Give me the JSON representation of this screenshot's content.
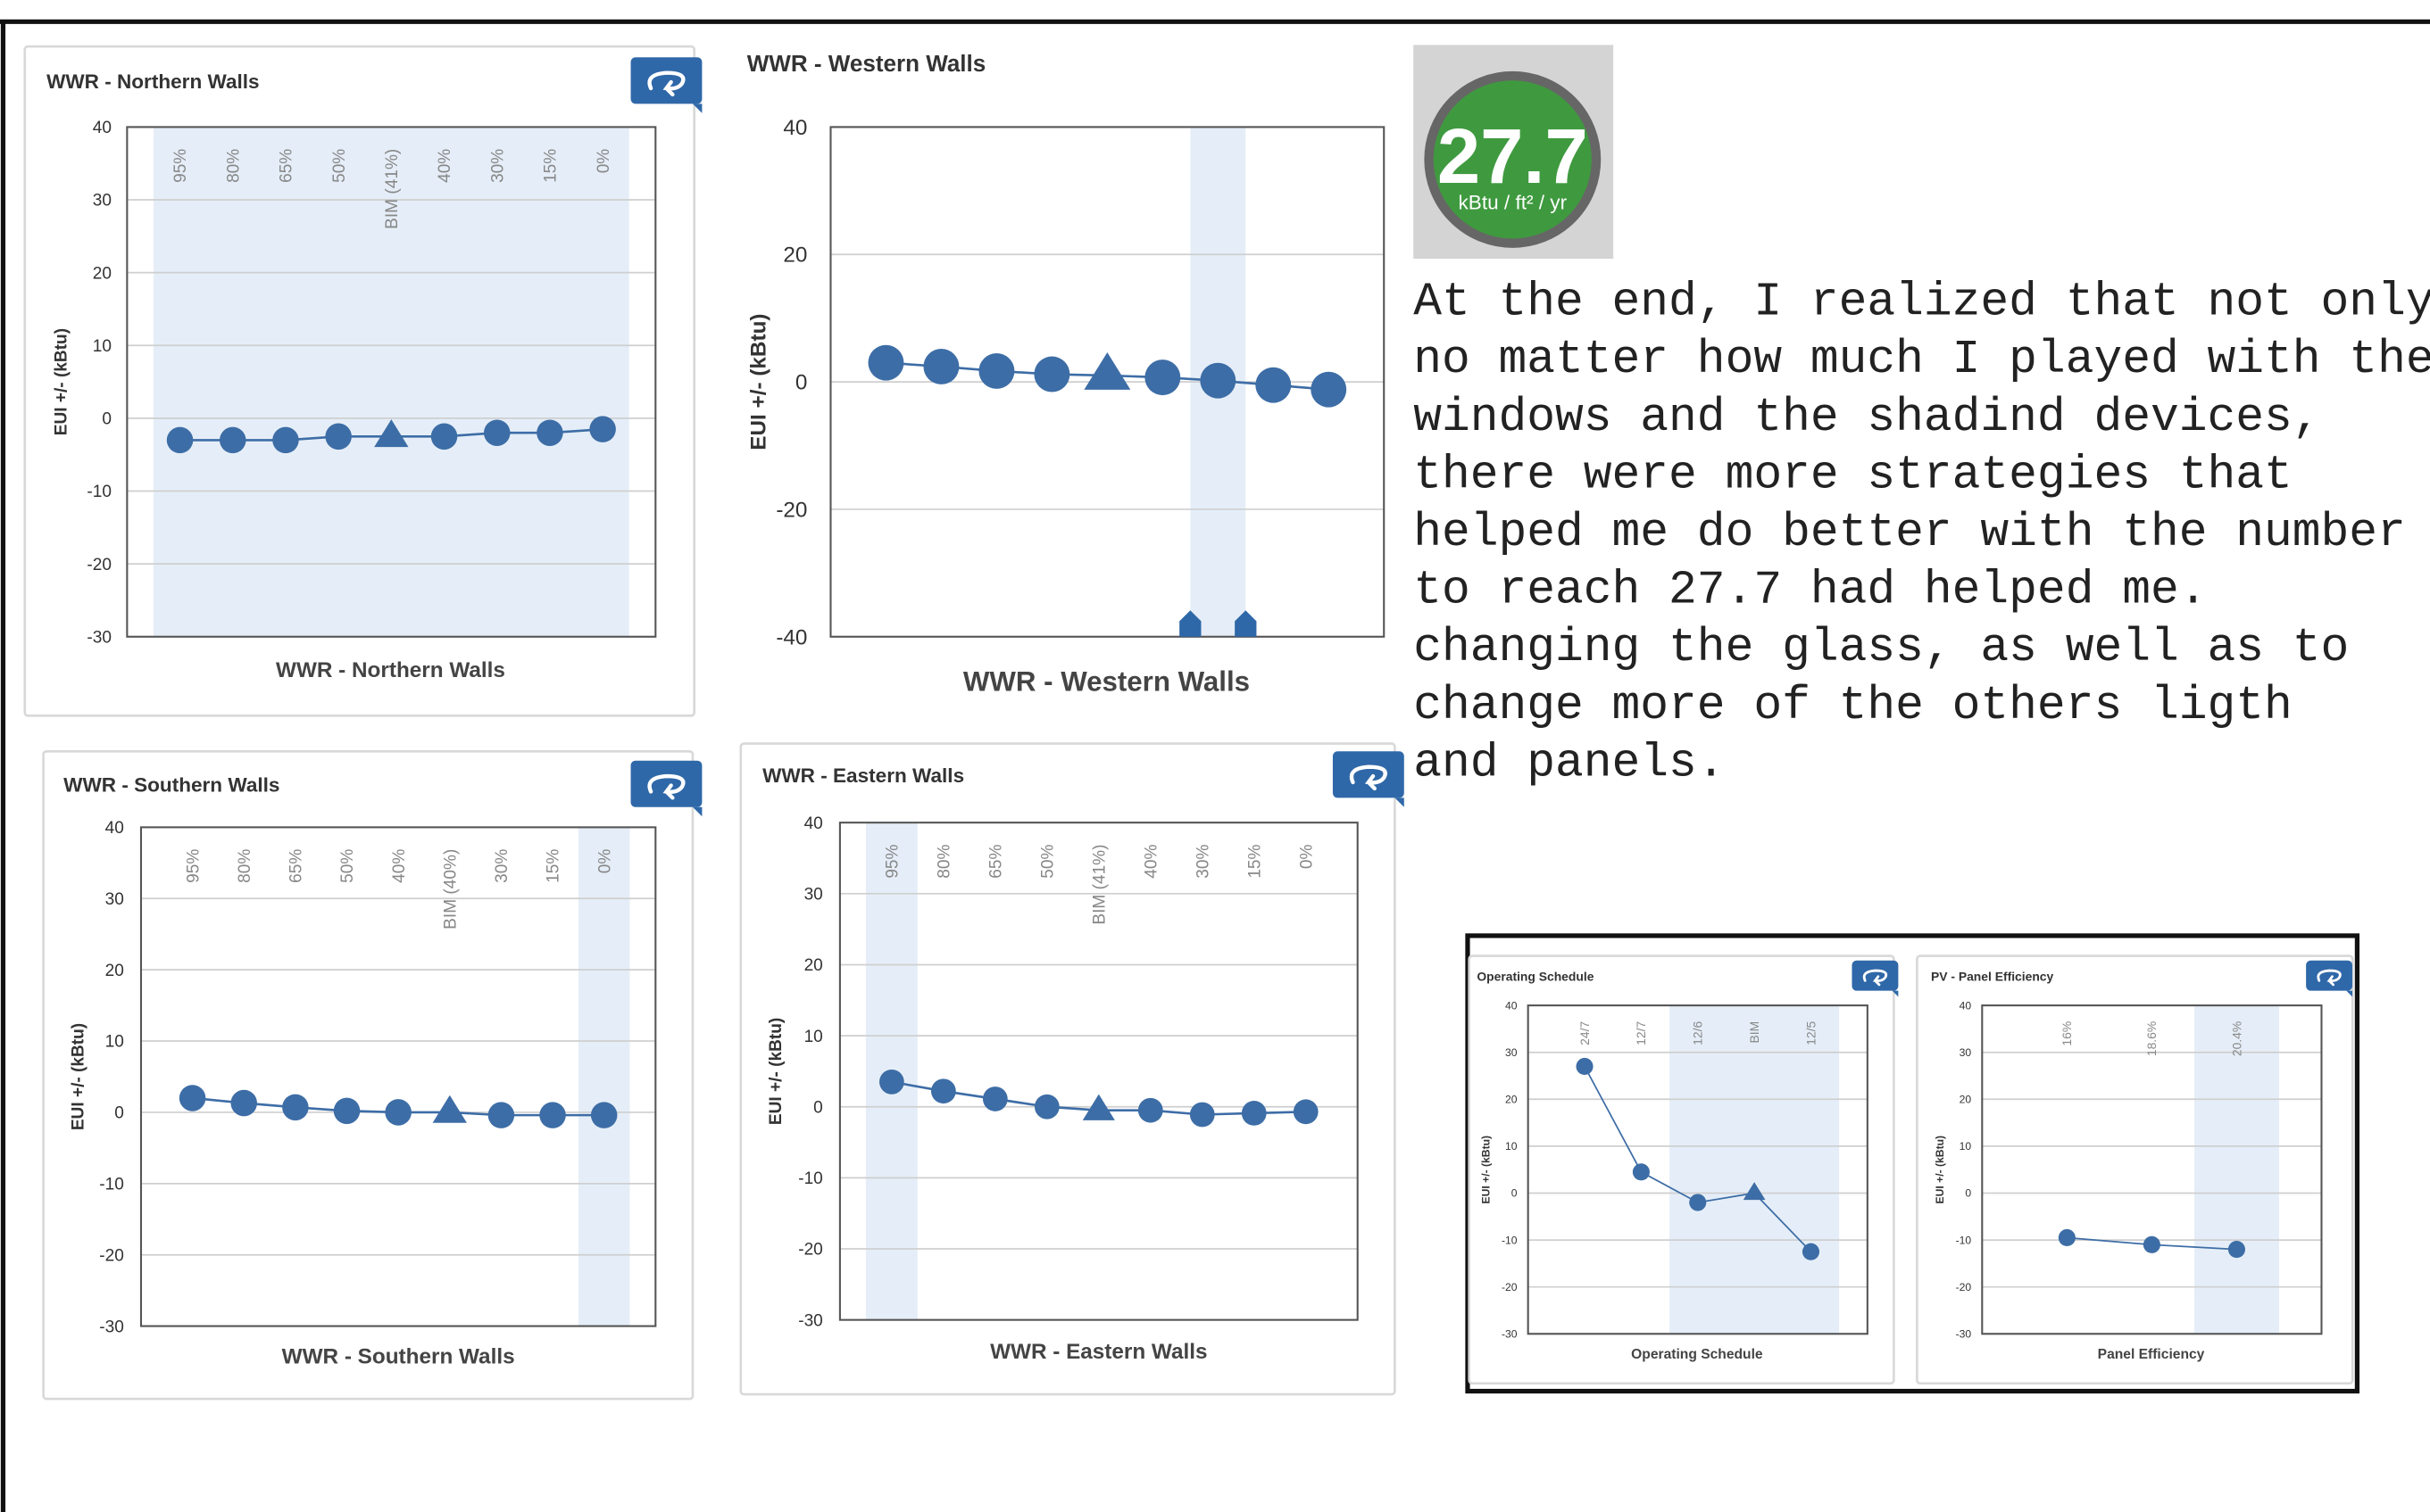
{
  "chart_data": [
    {
      "type": "line",
      "title": "WWR - Northern Walls",
      "y_label": "EUI +/- (kBtu)",
      "x_label": "WWR - Northern Walls",
      "categories": [
        "95%",
        "80%",
        "65%",
        "50%",
        "BIM (41%)",
        "40%",
        "30%",
        "15%",
        "0%"
      ],
      "values": [
        -3,
        -3,
        -3,
        -2.5,
        -2.5,
        -2.5,
        -2,
        -2,
        -1.5
      ],
      "markers": [
        "circle",
        "circle",
        "circle",
        "circle",
        "triangle",
        "circle",
        "circle",
        "circle",
        "circle"
      ],
      "highlight": [
        0,
        8
      ],
      "color": "#3d6da6",
      "ylim": [
        -30,
        40
      ],
      "yticks": [
        -30,
        -20,
        -10,
        0,
        10,
        20,
        30,
        40
      ],
      "grid": true
    },
    {
      "type": "line",
      "title": "WWR - Western Walls",
      "y_label": "EUI +/- (kBtu)",
      "x_label": "WWR - Western Walls",
      "categories": [
        null,
        null,
        null,
        null,
        null,
        null,
        null,
        null,
        null
      ],
      "values": [
        3,
        2.4,
        1.7,
        1.2,
        1,
        0.7,
        0.2,
        -0.5,
        -1.2
      ],
      "markers": [
        "circle",
        "circle",
        "circle",
        "circle",
        "triangle",
        "circle",
        "circle",
        "circle",
        "circle"
      ],
      "highlight": [
        6,
        6
      ],
      "color": "#3d6da6",
      "ylim": [
        -40,
        40
      ],
      "yticks": [
        -40,
        -20,
        0,
        20,
        40
      ],
      "grid": true
    },
    {
      "type": "line",
      "title": "WWR - Southern Walls",
      "y_label": "EUI +/- (kBtu)",
      "x_label": "WWR - Southern Walls",
      "categories": [
        "95%",
        "80%",
        "65%",
        "50%",
        "40%",
        "BIM (40%)",
        "30%",
        "15%",
        "0%"
      ],
      "values": [
        2,
        1.3,
        0.7,
        0.2,
        0,
        0,
        -0.4,
        -0.4,
        -0.4
      ],
      "markers": [
        "circle",
        "circle",
        "circle",
        "circle",
        "circle",
        "triangle",
        "circle",
        "circle",
        "circle"
      ],
      "highlight": [
        8,
        8
      ],
      "color": "#3d6da6",
      "ylim": [
        -30,
        40
      ],
      "yticks": [
        -30,
        -20,
        -10,
        0,
        10,
        20,
        30,
        40
      ],
      "grid": true
    },
    {
      "type": "line",
      "title": "WWR - Eastern Walls",
      "y_label": "EUI +/- (kBtu)",
      "x_label": "WWR - Eastern Walls",
      "categories": [
        "95%",
        "80%",
        "65%",
        "50%",
        "BIM (41%)",
        "40%",
        "30%",
        "15%",
        "0%"
      ],
      "values": [
        3.5,
        2.2,
        1.1,
        0,
        -0.5,
        -0.5,
        -1.1,
        -0.9,
        -0.7
      ],
      "markers": [
        "circle",
        "circle",
        "circle",
        "circle",
        "triangle",
        "circle",
        "circle",
        "circle",
        "circle"
      ],
      "highlight": [
        0,
        0
      ],
      "color": "#3d6da6",
      "ylim": [
        -30,
        40
      ],
      "yticks": [
        -30,
        -20,
        -10,
        0,
        10,
        20,
        30,
        40
      ],
      "grid": true
    },
    {
      "type": "line",
      "title": "Operating Schedule",
      "y_label": "EUI +/- (kBtu)",
      "x_label": "Operating Schedule",
      "categories": [
        "24/7",
        "12/7",
        "12/6",
        "BIM",
        "12/5"
      ],
      "values": [
        27,
        4.5,
        -2,
        0,
        -12.5
      ],
      "markers": [
        "circle",
        "circle",
        "circle",
        "triangle",
        "circle"
      ],
      "highlight": [
        2,
        4
      ],
      "color": "#3d6da6",
      "ylim": [
        -30,
        40
      ],
      "yticks": [
        -30,
        -20,
        -10,
        0,
        10,
        20,
        30,
        40
      ],
      "grid": true
    },
    {
      "type": "line",
      "title": "PV - Panel Efficiency",
      "y_label": "EUI +/- (kBtu)",
      "x_label": "Panel Efficiency",
      "categories": [
        "16%",
        "18.6%",
        "20.4%"
      ],
      "values": [
        -9.5,
        -11,
        -12
      ],
      "markers": [
        "circle",
        "circle",
        "circle"
      ],
      "highlight": [
        2,
        2
      ],
      "color": "#3d6da6",
      "ylim": [
        -30,
        40
      ],
      "yticks": [
        -30,
        -20,
        -10,
        0,
        10,
        20,
        30,
        40
      ],
      "grid": true
    }
  ],
  "badge": {
    "value": "27.7",
    "unit": "kBtu / ft² / yr"
  },
  "text": [
    "At the end, I realized that not only",
    "no matter how much I played with the",
    "windows and the shadind devices,",
    "there were more strategies that",
    "helped me do better with the number",
    "to reach 27.7 had helped me.",
    "changing the glass, as well as to",
    "change more of the others ligth",
    "and panels."
  ]
}
